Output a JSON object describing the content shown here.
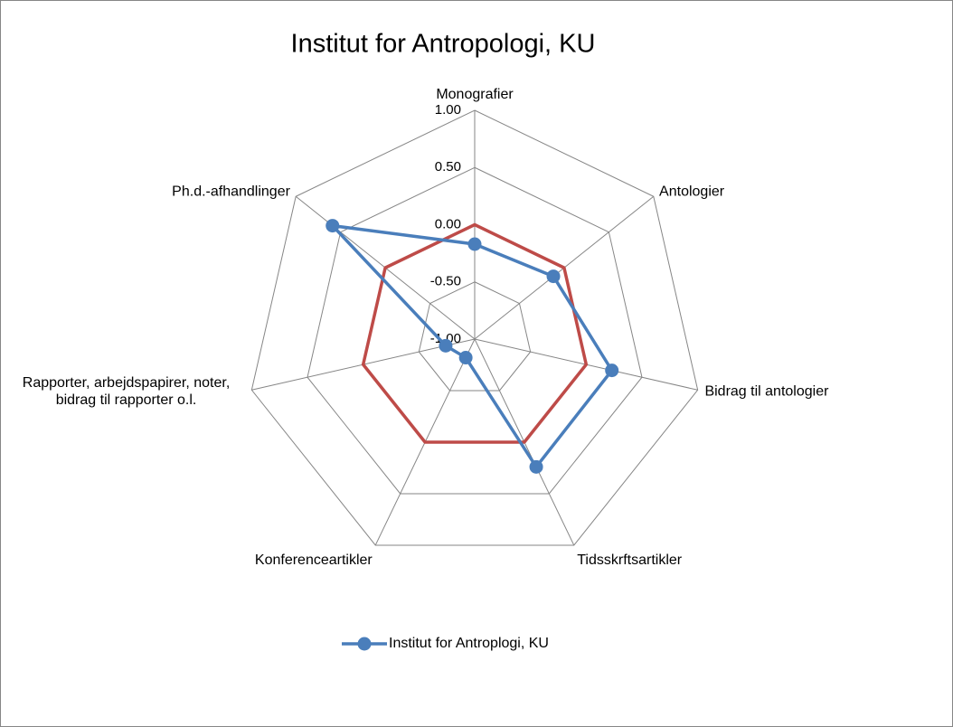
{
  "chart_data": {
    "type": "radar",
    "title": "Institut for Antropologi, KU",
    "categories": [
      "Monografier",
      "Antologier",
      "Bidrag til antologier",
      "Tidsskrftsartikler",
      "Konferenceartikler",
      "Rapporter, arbejdspapirer, noter, bidrag til rapporter o.l.",
      "Ph.d.-afhandlinger"
    ],
    "series": [
      {
        "name": "Institut for Antroplogi, KU",
        "color": "#4a7ebb",
        "values": [
          -0.17,
          -0.12,
          0.23,
          0.24,
          -0.82,
          -0.74,
          0.59
        ],
        "marker": true
      },
      {
        "color": "#be4b48",
        "values": [
          0,
          0,
          0,
          0,
          0,
          0,
          0
        ],
        "marker": false
      }
    ],
    "ylim": [
      -1,
      1
    ],
    "yticks": [
      {
        "value": -1,
        "label": "-1.00"
      },
      {
        "value": -0.5,
        "label": "-0.50"
      },
      {
        "value": 0,
        "label": "0.00"
      },
      {
        "value": 0.5,
        "label": "0.50"
      },
      {
        "value": 1,
        "label": "1.00"
      }
    ],
    "grid": true,
    "legend": "bottom"
  }
}
